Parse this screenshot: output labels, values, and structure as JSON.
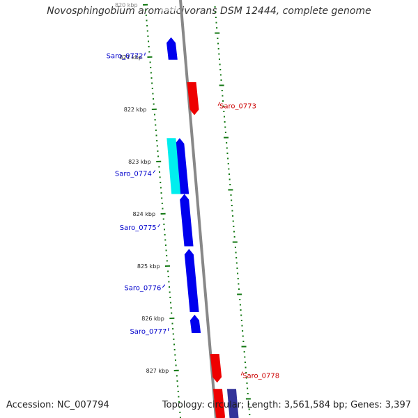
{
  "header": {
    "title": "Novosphingobium aromaticivorans DSM 12444, complete genome"
  },
  "footer": {
    "accession": "Accession: NC_007794",
    "topology": "Topology: circular; Length: 3,561,584 bp; Genes: 3,397"
  },
  "colors": {
    "forward_gene": "#0000ee",
    "reverse_gene": "#ee0000",
    "rna_gene": "#00eeee",
    "backbone": "#888888",
    "tick": "#117711",
    "forward_label": "#0000cc",
    "reverse_label": "#cc0000"
  },
  "ticks": {
    "unit": "kbp",
    "labeled": [
      {
        "kbp": 820,
        "label": "820 kbp"
      },
      {
        "kbp": 821,
        "label": "821 kbp"
      },
      {
        "kbp": 822,
        "label": "822 kbp"
      },
      {
        "kbp": 823,
        "label": "823 kbp"
      },
      {
        "kbp": 824,
        "label": "824 kbp"
      },
      {
        "kbp": 825,
        "label": "825 kbp"
      },
      {
        "kbp": 826,
        "label": "826 kbp"
      },
      {
        "kbp": 827,
        "label": "827 kbp"
      }
    ]
  },
  "genes": [
    {
      "name": "Saro_0772",
      "strand": "forward",
      "start_kbp": 820.62,
      "end_kbp": 821.05
    },
    {
      "name": "Saro_0773",
      "strand": "reverse",
      "start_kbp": 821.48,
      "end_kbp": 822.11
    },
    {
      "name": "Saro_0774",
      "strand": "forward",
      "start_kbp": 822.55,
      "end_kbp": 823.62
    },
    {
      "name": "",
      "strand": "rna",
      "start_kbp": 822.55,
      "end_kbp": 823.62
    },
    {
      "name": "Saro_0775",
      "strand": "forward",
      "start_kbp": 823.62,
      "end_kbp": 824.62
    },
    {
      "name": "Saro_0776",
      "strand": "forward",
      "start_kbp": 824.67,
      "end_kbp": 825.88
    },
    {
      "name": "Saro_0777",
      "strand": "forward",
      "start_kbp": 825.93,
      "end_kbp": 826.28
    },
    {
      "name": "Saro_0778",
      "strand": "reverse",
      "start_kbp": 826.68,
      "end_kbp": 827.23
    },
    {
      "name": "",
      "strand": "reverse",
      "start_kbp": 827.35,
      "end_kbp": 828.0
    },
    {
      "name": "",
      "strand": "other",
      "start_kbp": 827.35,
      "end_kbp": 828.0
    }
  ]
}
